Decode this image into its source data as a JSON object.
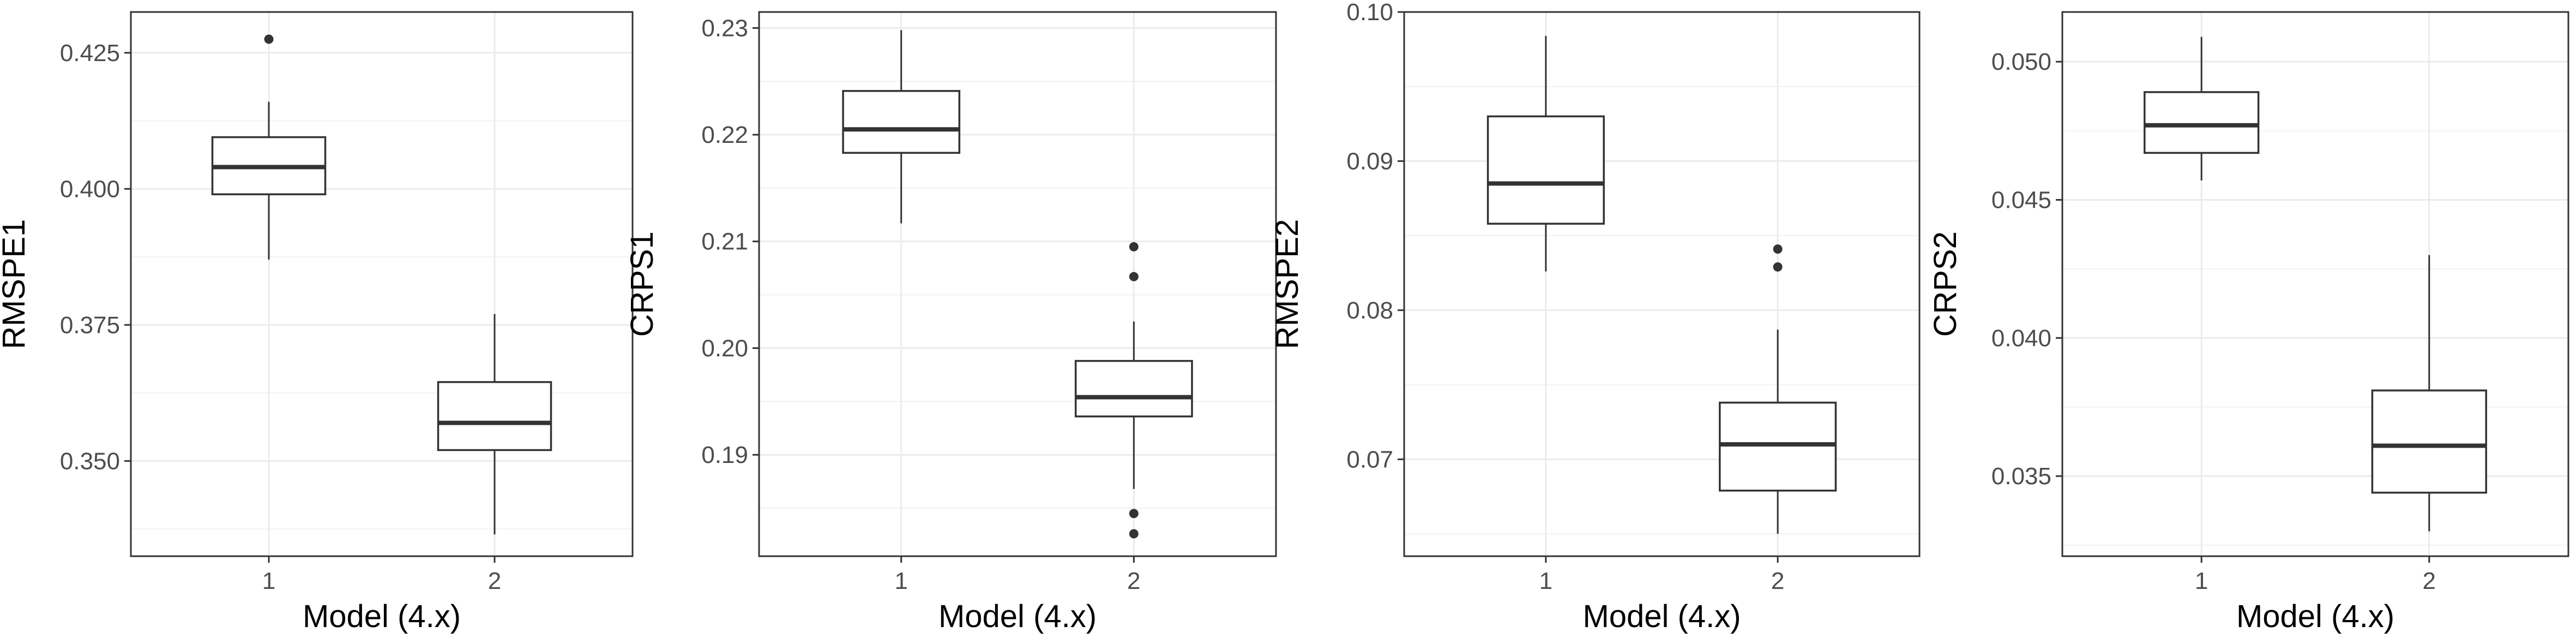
{
  "chart_data": [
    {
      "type": "boxplot",
      "xlabel": "Model (4.x)",
      "ylabel": "RMSPE1",
      "categories": [
        "1",
        "2"
      ],
      "ylim": [
        0.3325,
        0.4325
      ],
      "yticks": [
        0.35,
        0.375,
        0.4,
        0.425
      ],
      "ytick_labels": [
        "0.350",
        "0.375",
        "0.400",
        "0.425"
      ],
      "boxes": [
        {
          "category": "1",
          "whisker_low": 0.387,
          "q1": 0.399,
          "median": 0.404,
          "q3": 0.4095,
          "whisker_high": 0.416,
          "outliers": [
            0.4275
          ]
        },
        {
          "category": "2",
          "whisker_low": 0.3365,
          "q1": 0.352,
          "median": 0.357,
          "q3": 0.3645,
          "whisker_high": 0.377,
          "outliers": []
        }
      ]
    },
    {
      "type": "boxplot",
      "xlabel": "Model (4.x)",
      "ylabel": "CRPS1",
      "categories": [
        "1",
        "2"
      ],
      "ylim": [
        0.1805,
        0.2315
      ],
      "yticks": [
        0.19,
        0.2,
        0.21,
        0.22,
        0.23
      ],
      "ytick_labels": [
        "0.19",
        "0.20",
        "0.21",
        "0.22",
        "0.23"
      ],
      "boxes": [
        {
          "category": "1",
          "whisker_low": 0.2117,
          "q1": 0.2183,
          "median": 0.2205,
          "q3": 0.2241,
          "whisker_high": 0.2298,
          "outliers": []
        },
        {
          "category": "2",
          "whisker_low": 0.1868,
          "q1": 0.1936,
          "median": 0.1954,
          "q3": 0.1988,
          "whisker_high": 0.2025,
          "outliers": [
            0.2095,
            0.2067,
            0.1845,
            0.1826
          ]
        }
      ]
    },
    {
      "type": "boxplot",
      "xlabel": "Model (4.x)",
      "ylabel": "RMSPE2",
      "categories": [
        "1",
        "2"
      ],
      "ylim": [
        0.0635,
        0.1
      ],
      "yticks": [
        0.07,
        0.08,
        0.09,
        0.1
      ],
      "ytick_labels": [
        "0.07",
        "0.08",
        "0.09",
        "0.10"
      ],
      "boxes": [
        {
          "category": "1",
          "whisker_low": 0.0826,
          "q1": 0.0858,
          "median": 0.0885,
          "q3": 0.093,
          "whisker_high": 0.0984,
          "outliers": []
        },
        {
          "category": "2",
          "whisker_low": 0.065,
          "q1": 0.0679,
          "median": 0.071,
          "q3": 0.0738,
          "whisker_high": 0.0787,
          "outliers": [
            0.0841,
            0.0829
          ]
        }
      ]
    },
    {
      "type": "boxplot",
      "xlabel": "Model (4.x)",
      "ylabel": "CRPS2",
      "categories": [
        "1",
        "2"
      ],
      "ylim": [
        0.0321,
        0.0518
      ],
      "yticks": [
        0.035,
        0.04,
        0.045,
        0.05
      ],
      "ytick_labels": [
        "0.035",
        "0.040",
        "0.045",
        "0.050"
      ],
      "boxes": [
        {
          "category": "1",
          "whisker_low": 0.0457,
          "q1": 0.0467,
          "median": 0.0477,
          "q3": 0.0489,
          "whisker_high": 0.0509,
          "outliers": []
        },
        {
          "category": "2",
          "whisker_low": 0.033,
          "q1": 0.0344,
          "median": 0.0361,
          "q3": 0.0381,
          "whisker_high": 0.043,
          "outliers": []
        }
      ]
    }
  ]
}
